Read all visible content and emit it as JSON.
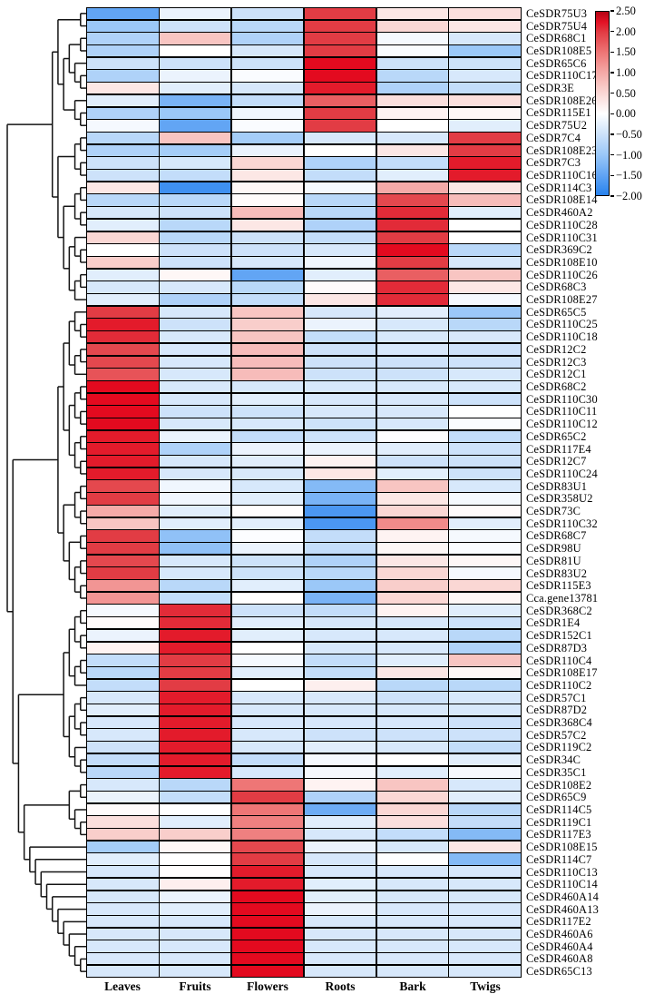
{
  "chart_data": {
    "type": "heatmap",
    "columns": [
      "Leaves",
      "Fruits",
      "Flowers",
      "Roots",
      "Bark",
      "Twigs"
    ],
    "rows": [
      "CeSDR75U3",
      "CeSDR75U4",
      "CeSDR68C1",
      "CeSDR108E5",
      "CeSDR65C6",
      "CeSDR110C17",
      "CeSDR3E",
      "CeSDR108E26",
      "CeSDR115E1",
      "CeSDR75U2",
      "CeSDR7C4",
      "CeSDR108E23",
      "CeSDR7C3",
      "CeSDR110C16",
      "CeSDR114C3",
      "CeSDR108E14",
      "CeSDR460A2",
      "CeSDR110C28",
      "CeSDR110C31",
      "CeSDR369C2",
      "CeSDR108E10",
      "CeSDR110C26",
      "CeSDR68C3",
      "CeSDR108E27",
      "CeSDR65C5",
      "CeSDR110C25",
      "CeSDR110C18",
      "CeSDR12C2",
      "CeSDR12C3",
      "CeSDR12C1",
      "CeSDR68C2",
      "CeSDR110C30",
      "CeSDR110C11",
      "CeSDR110C12",
      "CeSDR65C2",
      "CeSDR117E4",
      "CeSDR12C7",
      "CeSDR110C24",
      "CeSDR83U1",
      "CeSDR358U2",
      "CeSDR73C",
      "CeSDR110C32",
      "CeSDR68C7",
      "CeSDR98U",
      "CeSDR81U",
      "CeSDR83U2",
      "CeSDR115E3",
      "Cca.gene13781",
      "CeSDR368C2",
      "CeSDR1E4",
      "CeSDR152C1",
      "CeSDR87D3",
      "CeSDR110C4",
      "CeSDR108E17",
      "CeSDR110C2",
      "CeSDR57C1",
      "CeSDR87D2",
      "CeSDR368C4",
      "CeSDR57C2",
      "CeSDR119C2",
      "CeSDR34C",
      "CeSDR35C1",
      "CeSDR108E2",
      "CeSDR65C9",
      "CeSDR114C5",
      "CeSDR119C1",
      "CeSDR117E3",
      "CeSDR108E15",
      "CeSDR114C7",
      "CeSDR110C13",
      "CeSDR110C14",
      "CeSDR460A14",
      "CeSDR460A13",
      "CeSDR117E2",
      "CeSDR460A6",
      "CeSDR460A4",
      "CeSDR460A8",
      "CeSDR65C13"
    ],
    "values": [
      [
        -1.5,
        -0.2,
        -0.5,
        2.0,
        0.3,
        0.4
      ],
      [
        -1.0,
        -0.5,
        -0.7,
        2.0,
        0.5,
        0.3
      ],
      [
        -0.8,
        0.7,
        -0.8,
        2.0,
        -0.1,
        -0.4
      ],
      [
        -0.8,
        0.0,
        -0.4,
        2.0,
        -0.05,
        -1.0
      ],
      [
        -0.5,
        -0.5,
        -0.5,
        2.3,
        -0.5,
        -0.5
      ],
      [
        -0.8,
        -0.2,
        -0.05,
        2.3,
        -0.7,
        -0.4
      ],
      [
        0.3,
        -0.3,
        -0.4,
        2.2,
        -0.8,
        -0.6
      ],
      [
        -0.3,
        -1.3,
        -0.6,
        1.7,
        0.4,
        0.4
      ],
      [
        -0.8,
        -1.0,
        -0.15,
        2.0,
        0.15,
        0.1
      ],
      [
        -0.1,
        -1.5,
        -0.05,
        2.0,
        0.0,
        -0.3
      ],
      [
        -0.7,
        0.7,
        -0.9,
        -0.4,
        -0.4,
        2.0
      ],
      [
        -0.8,
        -0.9,
        -0.2,
        0.0,
        0.3,
        2.0
      ],
      [
        -0.5,
        -0.4,
        0.5,
        -0.8,
        -0.6,
        2.2
      ],
      [
        -0.5,
        -0.6,
        0.3,
        -0.6,
        -0.3,
        2.2
      ],
      [
        0.3,
        -1.8,
        0.1,
        -0.1,
        1.0,
        0.3
      ],
      [
        -0.7,
        -0.7,
        0.05,
        -0.7,
        1.9,
        0.8
      ],
      [
        -0.4,
        -0.5,
        0.8,
        -0.7,
        2.1,
        -0.3
      ],
      [
        -0.3,
        -0.7,
        0.3,
        -0.8,
        2.1,
        0.0
      ],
      [
        0.5,
        -0.7,
        -0.5,
        -0.6,
        2.0,
        0.0
      ],
      [
        0.0,
        -0.5,
        -0.5,
        -0.4,
        2.3,
        -0.7
      ],
      [
        0.6,
        -0.5,
        -0.4,
        -0.15,
        2.0,
        -0.4
      ],
      [
        -0.3,
        0.1,
        -1.5,
        -0.3,
        1.7,
        0.7
      ],
      [
        -0.4,
        -0.4,
        -0.7,
        0.05,
        2.1,
        0.3
      ],
      [
        -0.3,
        -0.8,
        -0.6,
        0.3,
        2.1,
        -0.1
      ],
      [
        2.0,
        -0.4,
        0.7,
        -0.4,
        -0.3,
        -1.0
      ],
      [
        2.2,
        -0.5,
        0.6,
        -0.2,
        -0.4,
        -0.7
      ],
      [
        2.1,
        -0.4,
        0.7,
        -0.6,
        -0.4,
        -0.4
      ],
      [
        1.9,
        -0.4,
        0.8,
        -0.5,
        -0.4,
        -0.5
      ],
      [
        1.9,
        -0.4,
        0.8,
        -0.5,
        -0.5,
        -0.5
      ],
      [
        1.8,
        -0.4,
        0.8,
        -0.5,
        -0.5,
        -0.4
      ],
      [
        2.3,
        -0.4,
        -0.4,
        -0.4,
        -0.4,
        -0.4
      ],
      [
        2.3,
        -0.4,
        -0.3,
        -0.4,
        -0.4,
        -0.5
      ],
      [
        2.3,
        -0.5,
        -0.5,
        -0.4,
        -0.4,
        0.0
      ],
      [
        2.3,
        -0.4,
        -0.4,
        -0.5,
        -0.4,
        -0.05
      ],
      [
        2.2,
        -0.2,
        -0.6,
        -0.5,
        -0.02,
        -0.6
      ],
      [
        2.2,
        -0.8,
        -0.2,
        -0.2,
        -0.3,
        -0.5
      ],
      [
        2.2,
        -0.4,
        -0.3,
        0.15,
        -0.5,
        -0.5
      ],
      [
        2.2,
        -0.4,
        -0.4,
        0.3,
        -0.3,
        -0.5
      ],
      [
        1.9,
        -0.15,
        -0.4,
        -1.2,
        0.7,
        -0.4
      ],
      [
        2.0,
        -0.15,
        -0.3,
        -1.3,
        0.3,
        -0.1
      ],
      [
        1.0,
        -0.3,
        0.02,
        -1.7,
        0.5,
        0.05
      ],
      [
        0.7,
        -0.3,
        -0.3,
        -1.7,
        1.3,
        -0.3
      ],
      [
        2.0,
        -1.1,
        -0.03,
        -0.6,
        0.15,
        -0.1
      ],
      [
        2.0,
        -1.1,
        -0.2,
        -0.6,
        0.1,
        -0.05
      ],
      [
        1.9,
        -0.4,
        -0.5,
        -0.8,
        0.3,
        0.1
      ],
      [
        2.0,
        -0.4,
        -0.5,
        -0.7,
        0.5,
        -0.1
      ],
      [
        1.2,
        -0.7,
        -0.3,
        -1.0,
        0.6,
        0.5
      ],
      [
        1.2,
        -0.6,
        0.0,
        -1.3,
        0.5,
        0.1
      ],
      [
        -0.1,
        2.1,
        -0.5,
        -0.6,
        0.15,
        -0.3
      ],
      [
        0.05,
        2.1,
        -0.3,
        -0.4,
        -0.4,
        -0.5
      ],
      [
        -0.2,
        2.2,
        -0.3,
        -0.4,
        -0.4,
        -0.7
      ],
      [
        0.15,
        2.2,
        0.0,
        -0.4,
        -0.4,
        -0.8
      ],
      [
        -0.6,
        2.0,
        -0.1,
        -0.6,
        -0.3,
        0.7
      ],
      [
        -0.7,
        2.0,
        -0.3,
        -0.6,
        0.3,
        0.1
      ],
      [
        -0.6,
        2.0,
        0.0,
        0.2,
        -0.7,
        -0.7
      ],
      [
        -0.4,
        2.2,
        -0.4,
        -0.4,
        -0.5,
        -0.4
      ],
      [
        -0.3,
        2.2,
        -0.4,
        -0.4,
        -0.4,
        -0.4
      ],
      [
        -0.4,
        2.2,
        -0.4,
        -0.4,
        -0.4,
        -0.5
      ],
      [
        -0.4,
        2.2,
        -0.4,
        -0.5,
        -0.5,
        -0.5
      ],
      [
        -0.5,
        2.2,
        -0.4,
        -0.3,
        -0.4,
        -0.6
      ],
      [
        -0.6,
        2.2,
        -0.6,
        -0.1,
        0.0,
        -0.3
      ],
      [
        -0.7,
        2.2,
        -0.4,
        -0.1,
        -0.3,
        -0.1
      ],
      [
        -0.4,
        -0.7,
        1.5,
        0.15,
        0.7,
        -0.4
      ],
      [
        -0.2,
        -0.6,
        2.0,
        -0.8,
        0.5,
        -0.3
      ],
      [
        0.05,
        0.0,
        1.5,
        -1.4,
        0.5,
        -0.7
      ],
      [
        0.4,
        -0.3,
        1.4,
        -0.3,
        0.4,
        -0.6
      ],
      [
        0.6,
        0.6,
        1.4,
        -0.4,
        -0.6,
        -1.2
      ],
      [
        -0.9,
        0.1,
        1.9,
        -0.2,
        -0.4,
        0.3
      ],
      [
        -0.3,
        0.0,
        2.0,
        -0.4,
        -0.02,
        -1.2
      ],
      [
        -0.4,
        0.02,
        2.2,
        -0.4,
        -0.4,
        -0.4
      ],
      [
        -0.4,
        0.2,
        2.2,
        -0.3,
        -0.4,
        -0.4
      ],
      [
        -0.4,
        -0.2,
        2.3,
        -0.3,
        -0.4,
        -0.4
      ],
      [
        -0.4,
        -0.3,
        2.3,
        -0.2,
        -0.4,
        -0.4
      ],
      [
        -0.4,
        -0.4,
        2.3,
        -0.4,
        -0.4,
        -0.4
      ],
      [
        -0.4,
        -0.4,
        2.3,
        -0.4,
        -0.4,
        -0.4
      ],
      [
        -0.4,
        -0.4,
        2.3,
        -0.4,
        -0.4,
        -0.4
      ],
      [
        -0.4,
        -0.4,
        2.3,
        -0.4,
        -0.4,
        -0.4
      ],
      [
        -0.4,
        -0.4,
        2.3,
        -0.4,
        -0.4,
        -0.4
      ]
    ],
    "colorbar": {
      "max": 2.5,
      "min": -2.0,
      "tick_labels": [
        "2.50",
        "2.00",
        "1.50",
        "1.00",
        "0.50",
        "0.00",
        "−0.50",
        "−1.00",
        "−1.50",
        "−2.00"
      ]
    },
    "colormap_stops": [
      [
        -2.0,
        "#2882ee"
      ],
      [
        -1.5,
        "#62a5f4"
      ],
      [
        -1.0,
        "#9bc8f8"
      ],
      [
        -0.5,
        "#cde2fa"
      ],
      [
        0.0,
        "#ffffff"
      ],
      [
        0.5,
        "#fad7d4"
      ],
      [
        1.0,
        "#f5aaa8"
      ],
      [
        1.5,
        "#ee7676"
      ],
      [
        2.0,
        "#e23c44"
      ],
      [
        2.3,
        "#e30a1f"
      ],
      [
        2.5,
        "#b40414"
      ]
    ],
    "legend_position": "right-top",
    "grid": "cell-borders-black",
    "dendrogram": [
      [
        [
          [
            1,
            2
          ],
          [
            [
              [
                3,
                4
              ],
              [
                5,
                [
                  6,
                  7
                ]
              ]
            ],
            [
              8,
              [
                9,
                10
              ]
            ]
          ]
        ],
        [
          [
            [
              11,
              12
            ],
            [
              13,
              14
            ]
          ],
          [
            [
              [
                15,
                16
              ],
              [
                17,
                18
              ]
            ],
            [
              [
                19,
                [
                  20,
                  21
                ]
              ],
              [
                [
                  22,
                  23
                ],
                24
              ]
            ]
          ]
        ]
      ],
      [
        [
          [
            [
              [
                25,
                [
                  26,
                  27
                ]
              ],
              [
                [
                  28,
                  29
                ],
                30
              ]
            ],
            [
              [
                [
                  31,
                  32
                ],
                [
                  33,
                  34
                ]
              ],
              [
                [
                  35,
                  36
                ],
                [
                  37,
                  38
                ]
              ]
            ]
          ],
          [
            [
              [
                39,
                40
              ],
              [
                41,
                42
              ]
            ],
            [
              [
                43,
                44
              ],
              [
                [
                  45,
                  46
                ],
                [
                  47,
                  48
                ]
              ]
            ]
          ]
        ],
        [
          [
            [
              [
                [
                  49,
                  50
                ],
                [
                  51,
                  52
                ]
              ],
              [
                [
                  53,
                  54
                ],
                55
              ]
            ],
            [
              [
                [
                  56,
                  57
                ],
                [
                  58,
                  59
                ]
              ],
              [
                60,
                [
                  61,
                  62
                ]
              ]
            ]
          ],
          [
            [
              [
                63,
                64
              ],
              [
                65,
                [
                  66,
                  67
                ]
              ]
            ],
            [
              68,
              [
                69,
                [
                  70,
                  [
                    71,
                    [
                      72,
                      [
                        73,
                        [
                          74,
                          [
                            75,
                            [
                              76,
                              [
                                77,
                                78
                              ]
                            ]
                          ]
                        ]
                      ]
                    ]
                  ]
                ]
              ]
            ]
          ]
        ]
      ]
    ]
  }
}
